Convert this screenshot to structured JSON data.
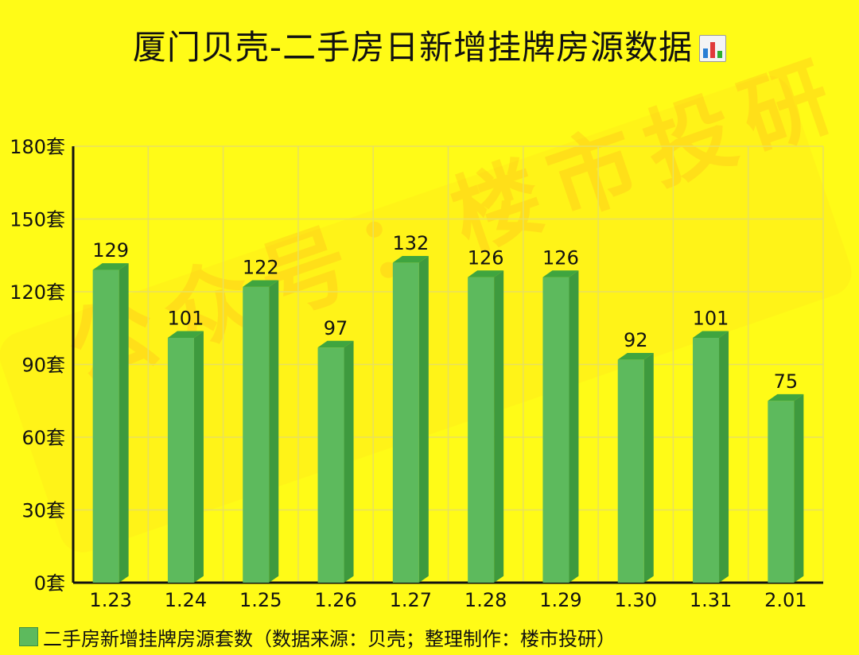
{
  "title": "厦门贝壳-二手房日新增挂牌房源数据",
  "title_icon": "bar-chart-emoji-icon",
  "watermark": "公众号：楼市投研",
  "legend": {
    "label": "二手房新增挂牌房源套数（数据来源：贝壳；整理制作：楼市投研）"
  },
  "colors": {
    "background": "#FFFB17",
    "bar_front": "#5DBA5D",
    "bar_side": "#3E9A3E",
    "bar_top": "#3FA53F",
    "grid": "#E8E060",
    "axis": "#111111"
  },
  "chart_data": {
    "type": "bar",
    "categories": [
      "1.23",
      "1.24",
      "1.25",
      "1.26",
      "1.27",
      "1.28",
      "1.29",
      "1.30",
      "1.31",
      "2.01"
    ],
    "series": [
      {
        "name": "二手房新增挂牌房源套数（数据来源：贝壳；整理制作：楼市投研）",
        "values": [
          129,
          101,
          122,
          97,
          132,
          126,
          126,
          92,
          101,
          75
        ]
      }
    ],
    "ylim": [
      0,
      180
    ],
    "yticks": [
      0,
      30,
      60,
      90,
      120,
      150,
      180
    ],
    "ytick_labels": [
      "0套",
      "30套",
      "60套",
      "90套",
      "120套",
      "150套",
      "180套"
    ],
    "data_labels": [
      "129",
      "101",
      "122",
      "97",
      "132",
      "126",
      "126",
      "92",
      "101",
      "75"
    ],
    "grid": true,
    "legend_position": "bottom-left",
    "style": "3d-bar"
  }
}
